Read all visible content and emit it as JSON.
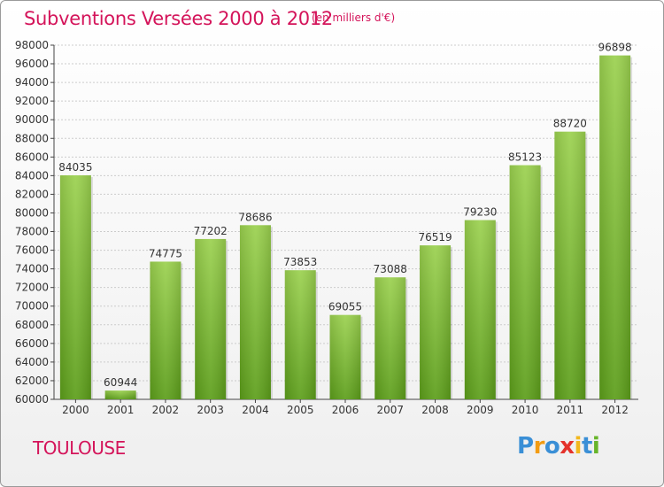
{
  "header": {
    "title": "Subventions Versées 2000 à 2012",
    "subtitle": "(en milliers d'€)"
  },
  "footer": {
    "city": "TOULOUSE",
    "logo": [
      "P",
      "r",
      "o",
      "x",
      "i",
      "t",
      "i"
    ]
  },
  "colors": {
    "title": "#d4145a",
    "bar_top": "#9bd14f",
    "bar_bottom": "#5c9e1a",
    "grid": "#cccccc"
  },
  "chart_data": {
    "type": "bar",
    "title": "Subventions Versées 2000 à 2012",
    "subtitle": "(en milliers d'€)",
    "categories": [
      "2000",
      "2001",
      "2002",
      "2003",
      "2004",
      "2005",
      "2006",
      "2007",
      "2008",
      "2009",
      "2010",
      "2011",
      "2012"
    ],
    "values": [
      84035,
      60944,
      74775,
      77202,
      78686,
      73853,
      69055,
      73088,
      76519,
      79230,
      85123,
      88720,
      96898
    ],
    "ylim": [
      60000,
      98000
    ],
    "yticks": [
      60000,
      62000,
      64000,
      66000,
      68000,
      70000,
      72000,
      74000,
      76000,
      78000,
      80000,
      82000,
      84000,
      86000,
      88000,
      90000,
      92000,
      94000,
      96000,
      98000
    ],
    "grid": true
  }
}
